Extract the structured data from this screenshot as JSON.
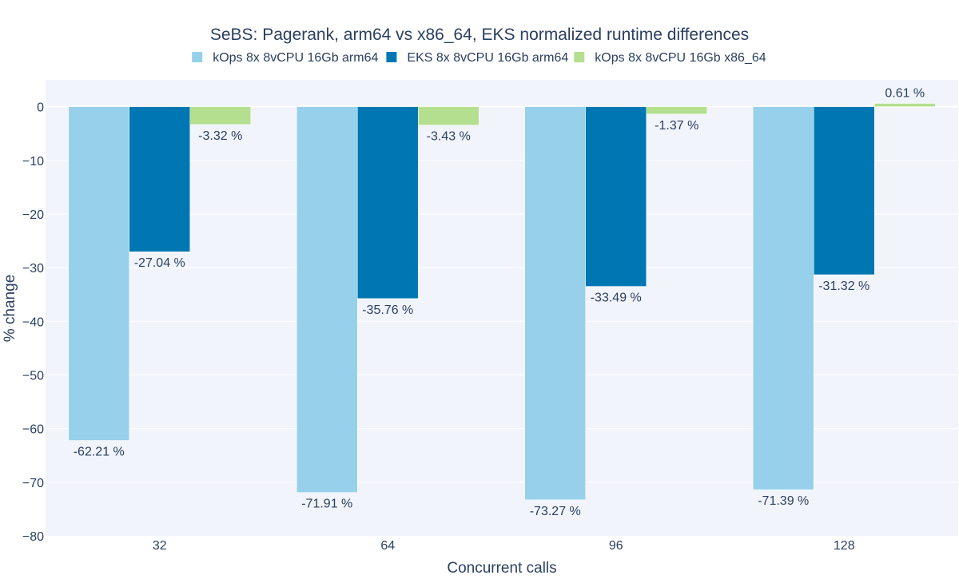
{
  "chart_data": {
    "type": "bar",
    "title": "SeBS: Pagerank, arm64 vs x86_64, EKS normalized runtime differences",
    "xlabel": "Concurrent calls",
    "ylabel": "% change",
    "categories": [
      "32",
      "64",
      "96",
      "128"
    ],
    "ylim": [
      -80,
      5
    ],
    "yticks": [
      0,
      -10,
      -20,
      -30,
      -40,
      -50,
      -60,
      -70,
      -80
    ],
    "ytick_labels": [
      "0",
      "−10",
      "−20",
      "−30",
      "−40",
      "−50",
      "−60",
      "−70",
      "−80"
    ],
    "grid": true,
    "legend_position": "top-center",
    "series": [
      {
        "name": "kOps 8x 8vCPU 16Gb arm64",
        "color": "#97d0ea",
        "values": [
          -62.21,
          -71.91,
          -73.27,
          -71.39
        ],
        "labels": [
          "-62.21 %",
          "-71.91 %",
          "-73.27 %",
          "-71.39 %"
        ]
      },
      {
        "name": "EKS 8x 8vCPU 16Gb arm64",
        "color": "#0077b2",
        "values": [
          -27.04,
          -35.76,
          -33.49,
          -31.32
        ],
        "labels": [
          "-27.04 %",
          "-35.76 %",
          "-33.49 %",
          "-31.32 %"
        ]
      },
      {
        "name": "kOps 8x 8vCPU 16Gb x86_64",
        "color": "#b3df8f",
        "values": [
          -3.32,
          -3.43,
          -1.37,
          0.61
        ],
        "labels": [
          "-3.32 %",
          "-3.43 %",
          "-1.37 %",
          "0.61 %"
        ]
      }
    ],
    "colors": {
      "plot_background": "#f2f4fc",
      "text": "#2a3f5f",
      "grid": "#ffffff"
    }
  }
}
